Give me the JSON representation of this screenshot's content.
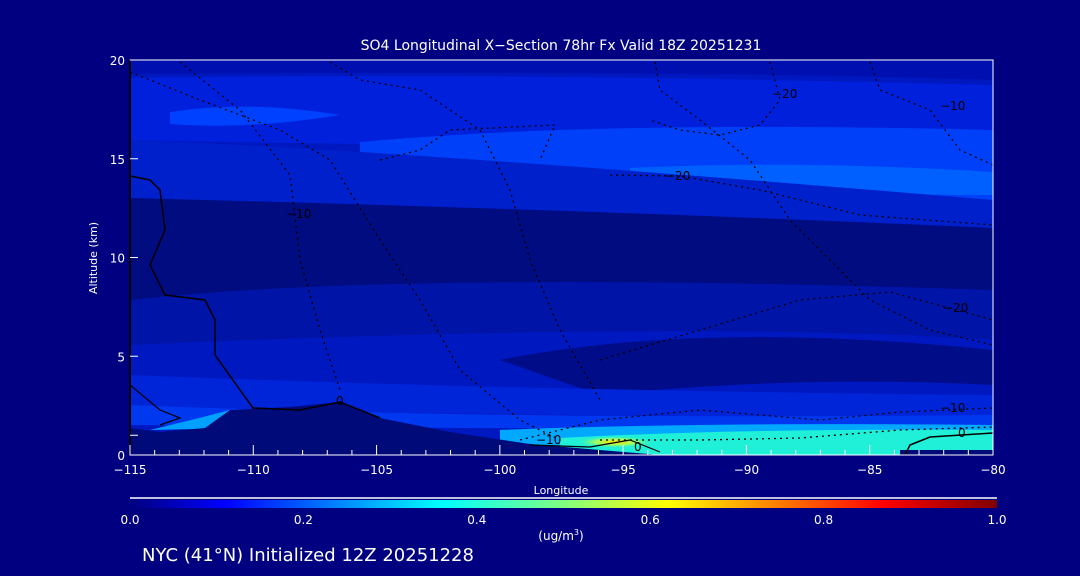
{
  "chart_data": {
    "type": "heatmap",
    "title": "SO4 Longitudinal X−Section 78hr  Fx Valid 18Z 20251231",
    "xlabel": "Longitude",
    "ylabel": "Altitude (km)",
    "xlim": [
      -115,
      -80
    ],
    "ylim": [
      0,
      20
    ],
    "x_ticks": [
      -115,
      -110,
      -105,
      -100,
      -95,
      -90,
      -85,
      -80
    ],
    "x_tick_labels": [
      "−115",
      "−110",
      "−105",
      "−100",
      "−95",
      "−90",
      "−85",
      "−80"
    ],
    "y_ticks": [
      0,
      5,
      10,
      15,
      20
    ],
    "y_tick_labels": [
      "0",
      "5",
      "10",
      "15",
      "20"
    ],
    "colorbar": {
      "range": [
        0.0,
        1.0
      ],
      "tick_labels": [
        "0.0",
        "0.2",
        "0.4",
        "0.6",
        "0.8",
        "1.0"
      ],
      "units_label": "(ug/m",
      "units_superscript": "3",
      "units_close": ")",
      "colors": [
        "#000080",
        "#0000ff",
        "#00ffff",
        "#ffff00",
        "#ff0000",
        "#800000"
      ]
    },
    "contour_labels": [
      "0",
      "−10",
      "−20",
      "−20",
      "−10",
      "−10",
      "0",
      "0",
      "−10",
      "−20"
    ],
    "notes": "Peak SO4 ~0.55 ug/m3 near the surface around -95 lon; low-level values ~0.35-0.45 from -96 to -80; upper levels ~0.05-0.25"
  },
  "footer": {
    "caption": "NYC (41°N) Initialized 12Z 20251228"
  }
}
